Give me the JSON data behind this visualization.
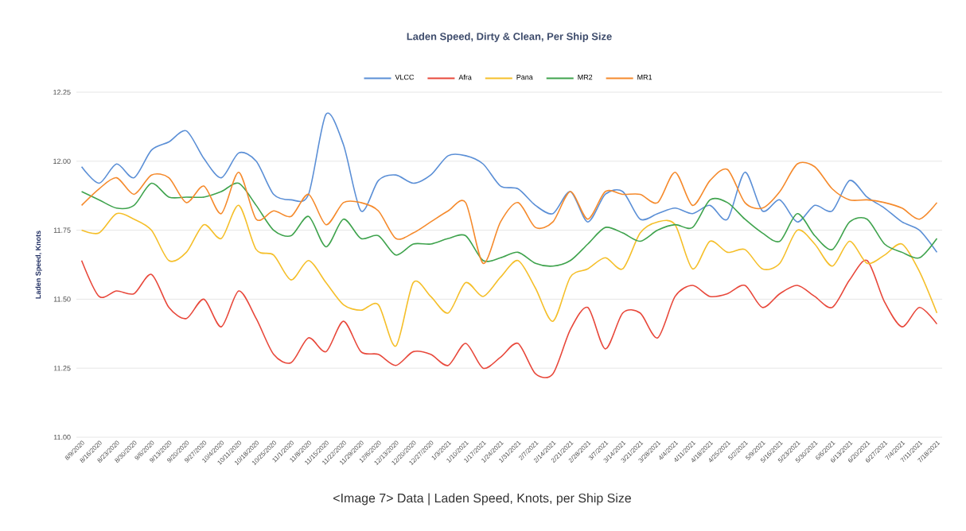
{
  "chart_data": {
    "type": "line",
    "title": "Laden Speed, Dirty & Clean, Per Ship Size",
    "ylabel": "Laden Speed, Knots",
    "annotations": [
      "<Image 7> Data | Laden Speed, Knots, per Ship Size"
    ],
    "categories": [
      "8/9/2020",
      "8/16/2020",
      "8/23/2020",
      "8/30/2020",
      "9/6/2020",
      "9/13/2020",
      "9/20/2020",
      "9/27/2020",
      "10/4/2020",
      "10/11/2020",
      "10/18/2020",
      "10/25/2020",
      "11/1/2020",
      "11/8/2020",
      "11/15/2020",
      "11/22/2020",
      "11/29/2020",
      "12/6/2020",
      "12/13/2020",
      "12/20/2020",
      "12/27/2020",
      "1/3/2021",
      "1/10/2021",
      "1/17/2021",
      "1/24/2021",
      "1/31/2021",
      "2/7/2021",
      "2/14/2021",
      "2/21/2021",
      "2/28/2021",
      "3/7/2021",
      "3/14/2021",
      "3/21/2021",
      "3/28/2021",
      "4/4/2021",
      "4/11/2021",
      "4/18/2021",
      "4/25/2021",
      "5/2/2021",
      "5/9/2021",
      "5/16/2021",
      "5/23/2021",
      "5/30/2021",
      "6/6/2021",
      "6/13/2021",
      "6/20/2021",
      "6/27/2021",
      "7/4/2021",
      "7/11/2021",
      "7/18/2021"
    ],
    "series": [
      {
        "name": "VLCC",
        "color": "#5b8fd6",
        "values": [
          11.98,
          11.92,
          11.99,
          11.94,
          12.04,
          12.07,
          12.11,
          12.01,
          11.94,
          12.03,
          12.0,
          11.88,
          11.86,
          11.88,
          12.17,
          12.06,
          11.82,
          11.93,
          11.95,
          11.92,
          11.95,
          12.02,
          12.02,
          11.99,
          11.91,
          11.9,
          11.84,
          11.81,
          11.89,
          11.78,
          11.88,
          11.89,
          11.79,
          11.81,
          11.83,
          11.81,
          11.84,
          11.79,
          11.96,
          11.82,
          11.86,
          11.78,
          11.84,
          11.82,
          11.93,
          11.87,
          11.83,
          11.78,
          11.75,
          11.67
        ]
      },
      {
        "name": "Afra",
        "color": "#e8483b",
        "values": [
          11.64,
          11.51,
          11.53,
          11.52,
          11.59,
          11.47,
          11.43,
          11.5,
          11.4,
          11.53,
          11.43,
          11.3,
          11.27,
          11.36,
          11.31,
          11.42,
          11.31,
          11.3,
          11.26,
          11.31,
          11.3,
          11.26,
          11.34,
          11.25,
          11.29,
          11.34,
          11.23,
          11.23,
          11.39,
          11.47,
          11.32,
          11.45,
          11.45,
          11.36,
          11.51,
          11.55,
          11.51,
          11.52,
          11.55,
          11.47,
          11.52,
          11.55,
          11.51,
          11.47,
          11.57,
          11.64,
          11.49,
          11.4,
          11.47,
          11.41
        ]
      },
      {
        "name": "Pana",
        "color": "#f5bf2a",
        "values": [
          11.75,
          11.74,
          11.81,
          11.79,
          11.75,
          11.64,
          11.67,
          11.77,
          11.72,
          11.84,
          11.68,
          11.66,
          11.57,
          11.64,
          11.56,
          11.48,
          11.46,
          11.48,
          11.33,
          11.56,
          11.51,
          11.45,
          11.56,
          11.51,
          11.58,
          11.64,
          11.54,
          11.42,
          11.58,
          11.61,
          11.65,
          11.61,
          11.74,
          11.78,
          11.77,
          11.61,
          11.71,
          11.67,
          11.68,
          11.61,
          11.63,
          11.75,
          11.7,
          11.62,
          11.71,
          11.63,
          11.66,
          11.7,
          11.6,
          11.45
        ]
      },
      {
        "name": "MR2",
        "color": "#3fa34d",
        "values": [
          11.89,
          11.86,
          11.83,
          11.84,
          11.92,
          11.87,
          11.87,
          11.87,
          11.89,
          11.92,
          11.84,
          11.75,
          11.73,
          11.8,
          11.69,
          11.79,
          11.72,
          11.73,
          11.66,
          11.7,
          11.7,
          11.72,
          11.73,
          11.64,
          11.65,
          11.67,
          11.63,
          11.62,
          11.64,
          11.7,
          11.76,
          11.74,
          11.71,
          11.75,
          11.77,
          11.76,
          11.86,
          11.85,
          11.79,
          11.74,
          11.71,
          11.81,
          11.73,
          11.68,
          11.78,
          11.79,
          11.7,
          11.67,
          11.65,
          11.72
        ]
      },
      {
        "name": "MR1",
        "color": "#f58a2c",
        "values": [
          11.84,
          11.9,
          11.94,
          11.88,
          11.95,
          11.94,
          11.85,
          11.91,
          11.81,
          11.96,
          11.79,
          11.82,
          11.8,
          11.88,
          11.77,
          11.85,
          11.85,
          11.82,
          11.72,
          11.74,
          11.78,
          11.82,
          11.85,
          11.63,
          11.78,
          11.85,
          11.76,
          11.78,
          11.89,
          11.79,
          11.89,
          11.88,
          11.88,
          11.85,
          11.96,
          11.84,
          11.93,
          11.97,
          11.85,
          11.83,
          11.89,
          11.99,
          11.98,
          11.9,
          11.86,
          11.86,
          11.85,
          11.83,
          11.79,
          11.85
        ]
      }
    ],
    "ylim": [
      11.0,
      12.25
    ],
    "yticks": [
      {
        "value": 11.0,
        "label": "11.00"
      },
      {
        "value": 11.25,
        "label": "11.25"
      },
      {
        "value": 11.5,
        "label": "11.50"
      },
      {
        "value": 11.75,
        "label": "11.75"
      },
      {
        "value": 12.0,
        "label": "12.00"
      },
      {
        "value": 12.25,
        "label": "12.25"
      }
    ],
    "grid": "y",
    "legend": "top",
    "marker": "none",
    "line_style": "solid"
  }
}
